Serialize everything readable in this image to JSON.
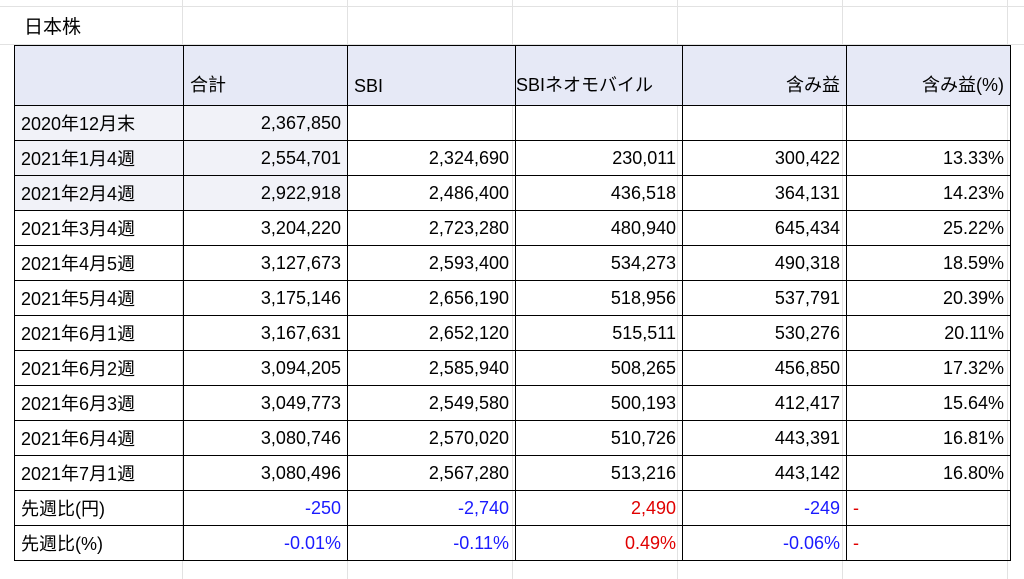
{
  "title": "日本株",
  "columns": [
    "",
    "合計",
    "SBI",
    "SBIネオモバイル",
    "含み益",
    "含み益(%)"
  ],
  "rows": [
    [
      "2020年12月末",
      "2,367,850",
      "",
      "",
      "",
      ""
    ],
    [
      "2021年1月4週",
      "2,554,701",
      "2,324,690",
      "230,011",
      "300,422",
      "13.33%"
    ],
    [
      "2021年2月4週",
      "2,922,918",
      "2,486,400",
      "436,518",
      "364,131",
      "14.23%"
    ],
    [
      "2021年3月4週",
      "3,204,220",
      "2,723,280",
      "480,940",
      "645,434",
      "25.22%"
    ],
    [
      "2021年4月5週",
      "3,127,673",
      "2,593,400",
      "534,273",
      "490,318",
      "18.59%"
    ],
    [
      "2021年5月4週",
      "3,175,146",
      "2,656,190",
      "518,956",
      "537,791",
      "20.39%"
    ],
    [
      "2021年6月1週",
      "3,167,631",
      "2,652,120",
      "515,511",
      "530,276",
      "20.11%"
    ],
    [
      "2021年6月2週",
      "3,094,205",
      "2,585,940",
      "508,265",
      "456,850",
      "17.32%"
    ],
    [
      "2021年6月3週",
      "3,049,773",
      "2,549,580",
      "500,193",
      "412,417",
      "15.64%"
    ],
    [
      "2021年6月4週",
      "3,080,746",
      "2,570,020",
      "510,726",
      "443,391",
      "16.81%"
    ],
    [
      "2021年7月1週",
      "3,080,496",
      "2,567,280",
      "513,216",
      "443,142",
      "16.80%"
    ]
  ],
  "diff_yen": {
    "label": "先週比(円)",
    "values": [
      "-250",
      "-2,740",
      "2,490",
      "-249"
    ],
    "dash": "-"
  },
  "diff_pct": {
    "label": "先週比(%)",
    "values": [
      "-0.01%",
      "-0.11%",
      "0.49%",
      "-0.06%"
    ],
    "dash": "-"
  },
  "colors": {
    "header_bg": "#e6e9f6",
    "shaded_bg": "#f1f2f8",
    "negative": "#1b1bff",
    "positive": "#e00000"
  }
}
